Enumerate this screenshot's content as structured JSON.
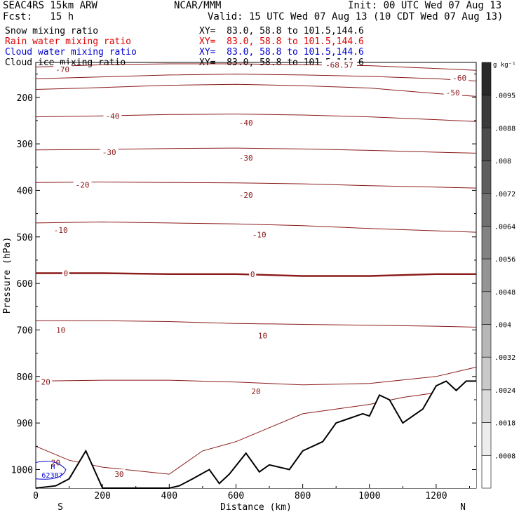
{
  "header": {
    "model": "SEAC4RS 15km ARW",
    "org": "NCAR/MMM",
    "init": "Init: 00 UTC Wed 07 Aug 13",
    "fcst": "Fcst:   15 h",
    "valid": "Valid: 15 UTC Wed 07 Aug 13 (10 CDT Wed 07 Aug 13)"
  },
  "legend": [
    {
      "label": "Snow mixing ratio",
      "xy": "XY=  83.0, 58.8 to 101.5,144.6",
      "color": "#000000"
    },
    {
      "label": "Rain water mixing ratio",
      "xy": "XY=  83.0, 58.8 to 101.5,144.6",
      "color": "#e00000"
    },
    {
      "label": "Cloud water mixing ratio",
      "xy": "XY=  83.0, 58.8 to 101.5,144.6",
      "color": "#0000d0"
    },
    {
      "label": "Cloud ice mixing ratio",
      "xy": "XY=  83.0, 58.8 to 101.5,144.6",
      "color": "#000000"
    }
  ],
  "chart_data": {
    "type": "contour",
    "xlabel": "Distance (km)",
    "ylabel": "Pressure (hPa)",
    "x_ticks": [
      0,
      200,
      400,
      600,
      800,
      1000,
      1200
    ],
    "y_ticks": [
      200,
      300,
      400,
      500,
      600,
      700,
      800,
      900,
      1000
    ],
    "xlim": [
      0,
      1320
    ],
    "ylim": [
      1040,
      125
    ],
    "y_scale": "linear",
    "endpoints": {
      "left": "S",
      "right": "N"
    },
    "colorbar": {
      "unit": "g kg⁻¹",
      "labels": [
        ".0095",
        ".0088",
        ".008",
        ".0072",
        ".0064",
        ".0056",
        ".0048",
        ".004",
        ".0032",
        ".0024",
        ".0018",
        ".0008"
      ]
    },
    "contour_color": "#8b1a1a",
    "temperature_contours": [
      {
        "level": -70,
        "points": [
          [
            0,
            135
          ],
          [
            200,
            130
          ],
          [
            400,
            128
          ],
          [
            600,
            128
          ],
          [
            800,
            130
          ],
          [
            1000,
            132
          ],
          [
            1200,
            138
          ],
          [
            1320,
            142
          ]
        ]
      },
      {
        "level": -60,
        "points": [
          [
            0,
            160
          ],
          [
            200,
            156
          ],
          [
            400,
            152
          ],
          [
            600,
            150
          ],
          [
            800,
            152
          ],
          [
            1000,
            155
          ],
          [
            1200,
            160
          ],
          [
            1320,
            165
          ]
        ]
      },
      {
        "level": -50,
        "points": [
          [
            0,
            183
          ],
          [
            200,
            179
          ],
          [
            400,
            174
          ],
          [
            600,
            172
          ],
          [
            800,
            175
          ],
          [
            1000,
            180
          ],
          [
            1200,
            192
          ],
          [
            1320,
            198
          ]
        ]
      },
      {
        "level": -40,
        "points": [
          [
            0,
            242
          ],
          [
            200,
            240
          ],
          [
            400,
            237
          ],
          [
            600,
            236
          ],
          [
            800,
            238
          ],
          [
            1000,
            242
          ],
          [
            1200,
            248
          ],
          [
            1320,
            252
          ]
        ]
      },
      {
        "level": -30,
        "points": [
          [
            0,
            313
          ],
          [
            200,
            312
          ],
          [
            400,
            310
          ],
          [
            600,
            309
          ],
          [
            800,
            311
          ],
          [
            1000,
            314
          ],
          [
            1200,
            318
          ],
          [
            1320,
            320
          ]
        ]
      },
      {
        "level": -20,
        "points": [
          [
            0,
            383
          ],
          [
            200,
            382
          ],
          [
            400,
            383
          ],
          [
            600,
            384
          ],
          [
            800,
            386
          ],
          [
            1000,
            390
          ],
          [
            1200,
            393
          ],
          [
            1320,
            395
          ]
        ]
      },
      {
        "level": -10,
        "points": [
          [
            0,
            470
          ],
          [
            200,
            468
          ],
          [
            400,
            470
          ],
          [
            600,
            472
          ],
          [
            800,
            476
          ],
          [
            1000,
            482
          ],
          [
            1200,
            487
          ],
          [
            1320,
            490
          ]
        ]
      },
      {
        "level": 0,
        "points": [
          [
            0,
            578
          ],
          [
            200,
            578
          ],
          [
            400,
            580
          ],
          [
            600,
            580
          ],
          [
            800,
            584
          ],
          [
            1000,
            584
          ],
          [
            1200,
            580
          ],
          [
            1320,
            580
          ]
        ]
      },
      {
        "level": 10,
        "points": [
          [
            0,
            680
          ],
          [
            200,
            680
          ],
          [
            400,
            682
          ],
          [
            600,
            686
          ],
          [
            800,
            688
          ],
          [
            1000,
            690
          ],
          [
            1200,
            692
          ],
          [
            1320,
            694
          ]
        ]
      },
      {
        "level": 20,
        "points": [
          [
            0,
            810
          ],
          [
            200,
            808
          ],
          [
            400,
            808
          ],
          [
            600,
            812
          ],
          [
            800,
            818
          ],
          [
            1000,
            815
          ],
          [
            1200,
            800
          ],
          [
            1320,
            780
          ]
        ]
      },
      {
        "level": 30,
        "points": [
          [
            0,
            950
          ],
          [
            100,
            980
          ],
          [
            200,
            995
          ],
          [
            400,
            1010
          ],
          [
            500,
            960
          ],
          [
            600,
            940
          ],
          [
            700,
            910
          ],
          [
            800,
            880
          ],
          [
            900,
            870
          ],
          [
            1000,
            860
          ],
          [
            1100,
            845
          ],
          [
            1200,
            835
          ],
          [
            1320,
            820
          ]
        ]
      }
    ],
    "labels_shown": [
      {
        "text": "-70",
        "x": 80,
        "p": 140
      },
      {
        "text": "-60",
        "x": 1270,
        "p": 158
      },
      {
        "text": "-50",
        "x": 1250,
        "p": 190
      },
      {
        "text": "-40",
        "x": 230,
        "p": 240
      },
      {
        "text": "-40",
        "x": 630,
        "p": 255
      },
      {
        "text": "-30",
        "x": 220,
        "p": 318
      },
      {
        "text": "-30",
        "x": 630,
        "p": 330
      },
      {
        "text": "-20",
        "x": 140,
        "p": 388
      },
      {
        "text": "-20",
        "x": 630,
        "p": 410
      },
      {
        "text": "-10",
        "x": 75,
        "p": 485
      },
      {
        "text": "-10",
        "x": 670,
        "p": 495
      },
      {
        "text": "0",
        "x": 90,
        "p": 578
      },
      {
        "text": "0",
        "x": 650,
        "p": 580
      },
      {
        "text": "10",
        "x": 75,
        "p": 700
      },
      {
        "text": "10",
        "x": 680,
        "p": 712
      },
      {
        "text": "20",
        "x": 30,
        "p": 812
      },
      {
        "text": "20",
        "x": 660,
        "p": 832
      },
      {
        "text": "20",
        "x": 60,
        "p": 985
      },
      {
        "text": "30",
        "x": 250,
        "p": 1010
      },
      {
        "text": "-68.57",
        "x": 910,
        "p": 130
      }
    ],
    "cloud_water_annotation": {
      "text1": "H",
      "text2": "6238?",
      "x": 45,
      "p": 1005
    },
    "terrain": [
      [
        0,
        1040
      ],
      [
        60,
        1035
      ],
      [
        100,
        1020
      ],
      [
        150,
        960
      ],
      [
        200,
        1040
      ],
      [
        400,
        1040
      ],
      [
        430,
        1035
      ],
      [
        470,
        1020
      ],
      [
        520,
        1000
      ],
      [
        550,
        1030
      ],
      [
        580,
        1010
      ],
      [
        630,
        965
      ],
      [
        670,
        1005
      ],
      [
        700,
        990
      ],
      [
        760,
        1000
      ],
      [
        800,
        960
      ],
      [
        860,
        940
      ],
      [
        900,
        900
      ],
      [
        940,
        890
      ],
      [
        980,
        880
      ],
      [
        1000,
        885
      ],
      [
        1030,
        840
      ],
      [
        1060,
        850
      ],
      [
        1100,
        900
      ],
      [
        1160,
        870
      ],
      [
        1200,
        820
      ],
      [
        1230,
        810
      ],
      [
        1260,
        830
      ],
      [
        1290,
        810
      ],
      [
        1320,
        810
      ]
    ]
  }
}
